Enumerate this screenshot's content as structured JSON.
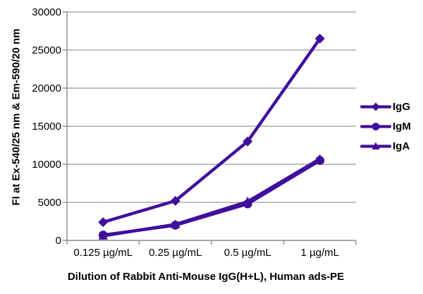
{
  "chart_data": {
    "type": "line",
    "title": "",
    "xlabel": "Dilution of Rabbit Anti-Mouse IgG(H+L), Human ads-PE",
    "ylabel": "FI at Ex-540/25 nm & Em-590/20 nm",
    "x_categories": [
      "0.125 µg/mL",
      "0.25 µg/mL",
      "0.5 µg/mL",
      "1 µg/mL"
    ],
    "ylim": [
      0,
      30000
    ],
    "yticks": [
      0,
      5000,
      10000,
      15000,
      20000,
      25000,
      30000
    ],
    "ytick_labels": [
      "0",
      "5000",
      "10000",
      "15000",
      "20000",
      "25000",
      "30000"
    ],
    "grid": "horizontal-gridlines",
    "legend_position": "right-center",
    "series": [
      {
        "name": "IgG",
        "marker": "diamond",
        "values": [
          2400,
          5200,
          13000,
          26500
        ]
      },
      {
        "name": "IgM",
        "marker": "circle",
        "values": [
          700,
          2000,
          4800,
          10500
        ]
      },
      {
        "name": "IgA",
        "marker": "triangle",
        "values": [
          600,
          2100,
          5100,
          10700
        ]
      }
    ],
    "colors": {
      "series": "#400F9C",
      "grid": "#9A9A9A",
      "axis": "#8A8A8A",
      "text": "#000000"
    }
  }
}
